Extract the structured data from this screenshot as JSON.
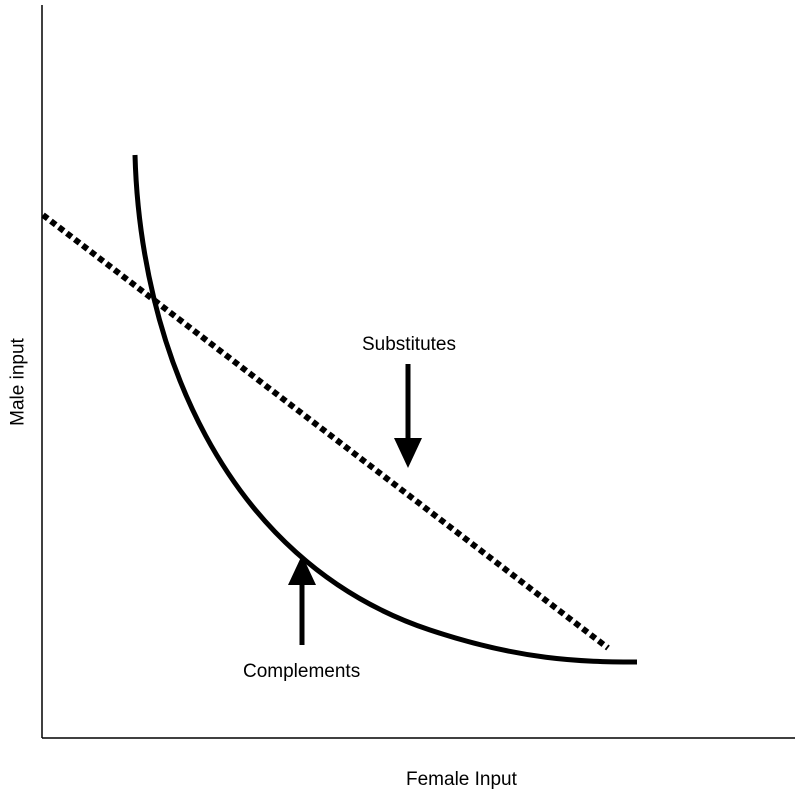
{
  "axes": {
    "y_label": "Male input",
    "x_label": "Female Input"
  },
  "curves": {
    "substitutes": {
      "label": "Substitutes",
      "style": "dotted",
      "color": "#000000"
    },
    "complements": {
      "label": "Complements",
      "style": "solid",
      "color": "#000000"
    }
  }
}
